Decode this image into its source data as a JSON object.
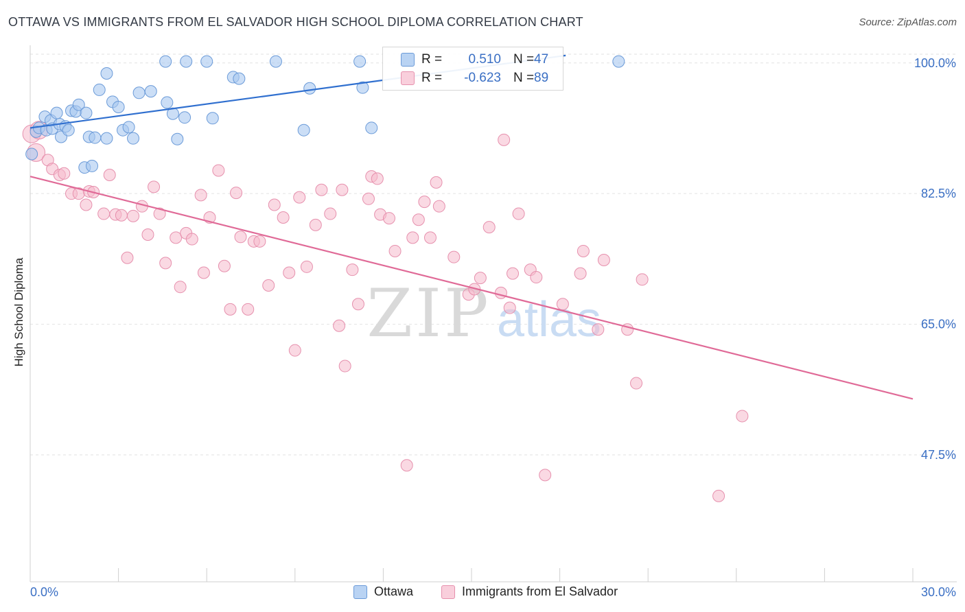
{
  "header": {
    "title": "OTTAWA VS IMMIGRANTS FROM EL SALVADOR HIGH SCHOOL DIPLOMA CORRELATION CHART",
    "source": "Source: ZipAtlas.com"
  },
  "watermark": {
    "zip": "ZIP",
    "atlas": "atlas"
  },
  "legend": {
    "rows": [
      {
        "r_label": "R =",
        "r_value": "0.510",
        "n_label": "N =",
        "n_value": "47",
        "color": "#a8c8f0"
      },
      {
        "r_label": "R =",
        "r_value": "-0.623",
        "n_label": "N =",
        "n_value": "89",
        "color": "#f6b9cc"
      }
    ]
  },
  "colors": {
    "ottawa_fill": "#a8c8f0",
    "ottawa_stroke": "#6a9ad8",
    "ottawa_line": "#2f6fcf",
    "salv_fill": "#f6b9cc",
    "salv_stroke": "#e690ad",
    "salv_line": "#e06a97",
    "tick_label": "#3a6fc4",
    "grid": "#e2e2e2"
  },
  "chart_data": {
    "type": "scatter",
    "title": "OTTAWA VS IMMIGRANTS FROM EL SALVADOR HIGH SCHOOL DIPLOMA CORRELATION CHART",
    "xlabel": "",
    "ylabel": "High School Diploma",
    "xlim": [
      0,
      30
    ],
    "ylim": [
      30.5,
      102
    ],
    "x_tick_labels": [
      "0.0%",
      "30.0%"
    ],
    "y_ticks": [
      47.5,
      65.0,
      82.5,
      100.0
    ],
    "y_tick_labels": [
      "47.5%",
      "65.0%",
      "82.5%",
      "100.0%"
    ],
    "grid": true,
    "legend_position": "top-center",
    "series": [
      {
        "name": "Ottawa",
        "r": 0.51,
        "n": 47,
        "trend": {
          "x": [
            0.0,
            18.2
          ],
          "y": [
            91.3,
            101.0
          ]
        },
        "points": [
          [
            0.05,
            87.8
          ],
          [
            0.2,
            90.8
          ],
          [
            0.3,
            91.3
          ],
          [
            0.5,
            92.8
          ],
          [
            0.55,
            91.0
          ],
          [
            0.7,
            92.3
          ],
          [
            0.75,
            91.2
          ],
          [
            0.9,
            93.3
          ],
          [
            1.0,
            91.8
          ],
          [
            1.05,
            90.1
          ],
          [
            1.2,
            91.5
          ],
          [
            1.3,
            91.0
          ],
          [
            1.4,
            93.6
          ],
          [
            1.55,
            93.5
          ],
          [
            1.65,
            94.4
          ],
          [
            1.85,
            86.0
          ],
          [
            1.9,
            93.3
          ],
          [
            2.0,
            90.1
          ],
          [
            2.1,
            86.2
          ],
          [
            2.2,
            90.0
          ],
          [
            2.35,
            96.4
          ],
          [
            2.6,
            89.9
          ],
          [
            2.6,
            98.6
          ],
          [
            2.8,
            94.8
          ],
          [
            3.0,
            94.1
          ],
          [
            3.15,
            91.0
          ],
          [
            3.35,
            91.4
          ],
          [
            3.5,
            89.9
          ],
          [
            3.7,
            96.0
          ],
          [
            4.1,
            96.2
          ],
          [
            4.65,
            94.7
          ],
          [
            4.85,
            93.2
          ],
          [
            5.0,
            89.8
          ],
          [
            5.25,
            92.7
          ],
          [
            6.2,
            92.6
          ],
          [
            4.6,
            100.2
          ],
          [
            5.3,
            100.2
          ],
          [
            6.0,
            100.2
          ],
          [
            6.9,
            98.1
          ],
          [
            7.1,
            97.9
          ],
          [
            8.35,
            100.2
          ],
          [
            9.3,
            91.0
          ],
          [
            9.5,
            96.6
          ],
          [
            11.3,
            96.7
          ],
          [
            11.6,
            91.3
          ],
          [
            20.0,
            100.2
          ],
          [
            11.2,
            100.2
          ]
        ]
      },
      {
        "name": "Immigrants from El Salvador",
        "r": -0.623,
        "n": 89,
        "trend": {
          "x": [
            0.0,
            30.0
          ],
          "y": [
            84.8,
            55.0
          ]
        },
        "points": [
          [
            0.05,
            90.5
          ],
          [
            0.2,
            88.0
          ],
          [
            0.3,
            91.0
          ],
          [
            0.6,
            87.0
          ],
          [
            0.75,
            85.8
          ],
          [
            1.0,
            85.0
          ],
          [
            1.15,
            85.2
          ],
          [
            1.4,
            82.5
          ],
          [
            1.65,
            82.5
          ],
          [
            1.9,
            81.0
          ],
          [
            2.0,
            82.8
          ],
          [
            2.15,
            82.7
          ],
          [
            2.5,
            79.8
          ],
          [
            2.7,
            85.0
          ],
          [
            2.9,
            79.7
          ],
          [
            3.1,
            79.6
          ],
          [
            3.3,
            73.9
          ],
          [
            3.5,
            79.5
          ],
          [
            3.8,
            80.8
          ],
          [
            4.0,
            77.0
          ],
          [
            4.2,
            83.4
          ],
          [
            4.4,
            79.8
          ],
          [
            4.6,
            73.2
          ],
          [
            4.95,
            76.6
          ],
          [
            5.1,
            70.0
          ],
          [
            5.3,
            77.2
          ],
          [
            5.5,
            76.4
          ],
          [
            5.8,
            82.3
          ],
          [
            5.9,
            71.9
          ],
          [
            6.1,
            79.3
          ],
          [
            6.4,
            85.6
          ],
          [
            6.6,
            72.8
          ],
          [
            6.8,
            67.0
          ],
          [
            7.0,
            82.6
          ],
          [
            7.15,
            76.7
          ],
          [
            7.4,
            67.0
          ],
          [
            7.6,
            76.1
          ],
          [
            7.8,
            76.1
          ],
          [
            8.1,
            70.2
          ],
          [
            8.3,
            81.0
          ],
          [
            8.6,
            79.3
          ],
          [
            8.8,
            71.9
          ],
          [
            9.0,
            61.5
          ],
          [
            9.15,
            82.0
          ],
          [
            9.4,
            72.7
          ],
          [
            9.7,
            78.3
          ],
          [
            9.9,
            83.0
          ],
          [
            10.2,
            79.8
          ],
          [
            10.5,
            64.8
          ],
          [
            10.6,
            83.0
          ],
          [
            10.7,
            59.4
          ],
          [
            10.95,
            72.3
          ],
          [
            11.15,
            67.7
          ],
          [
            11.5,
            81.8
          ],
          [
            11.6,
            84.8
          ],
          [
            11.8,
            84.5
          ],
          [
            11.9,
            79.7
          ],
          [
            12.2,
            79.2
          ],
          [
            12.4,
            74.8
          ],
          [
            12.8,
            46.1
          ],
          [
            13.0,
            76.6
          ],
          [
            13.2,
            79.0
          ],
          [
            13.4,
            81.4
          ],
          [
            13.6,
            76.6
          ],
          [
            13.8,
            84.0
          ],
          [
            13.9,
            80.8
          ],
          [
            14.4,
            74.0
          ],
          [
            14.9,
            69.0
          ],
          [
            15.1,
            69.7
          ],
          [
            15.3,
            71.2
          ],
          [
            15.6,
            78.0
          ],
          [
            16.0,
            69.2
          ],
          [
            16.1,
            89.7
          ],
          [
            16.3,
            67.2
          ],
          [
            16.4,
            71.8
          ],
          [
            16.6,
            79.8
          ],
          [
            17.0,
            72.3
          ],
          [
            17.2,
            71.3
          ],
          [
            17.5,
            44.8
          ],
          [
            18.1,
            67.7
          ],
          [
            18.7,
            71.8
          ],
          [
            18.8,
            74.8
          ],
          [
            19.3,
            64.3
          ],
          [
            19.5,
            73.6
          ],
          [
            20.3,
            64.3
          ],
          [
            20.6,
            57.1
          ],
          [
            20.8,
            71.0
          ],
          [
            23.4,
            42.0
          ],
          [
            24.2,
            52.7
          ]
        ]
      }
    ]
  },
  "bottom_legend": [
    {
      "label": "Ottawa",
      "color": "#a8c8f0"
    },
    {
      "label": "Immigrants from El Salvador",
      "color": "#f6b9cc"
    }
  ]
}
